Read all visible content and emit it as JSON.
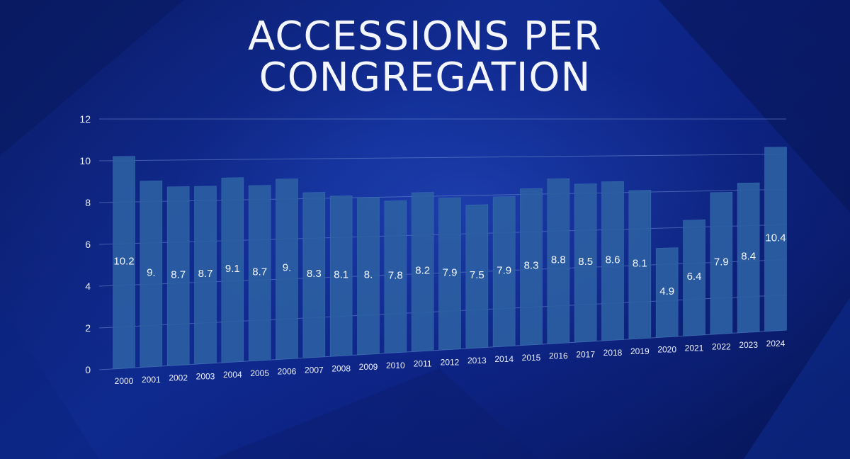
{
  "header": {
    "title_line1": "ACCESSIONS PER",
    "title_line2": "CONGREGATION"
  },
  "colors": {
    "background": "#0c1f72",
    "bar": "#2c5fa3",
    "text": "#f4f6ff",
    "grid": "#6f8fd0"
  },
  "chart_data": {
    "type": "bar",
    "title": "ACCESSIONS PER CONGREGATION",
    "xlabel": "",
    "ylabel": "",
    "ylim": [
      0,
      12
    ],
    "yticks": [
      0,
      2,
      4,
      6,
      8,
      10,
      12
    ],
    "grid": true,
    "categories": [
      "2000",
      "2001",
      "2002",
      "2003",
      "2004",
      "2005",
      "2006",
      "2007",
      "2008",
      "2009",
      "2010",
      "2011",
      "2012",
      "2013",
      "2014",
      "2015",
      "2016",
      "2017",
      "2018",
      "2019",
      "2020",
      "2021",
      "2022",
      "2023",
      "2024"
    ],
    "values": [
      10.2,
      9.0,
      8.7,
      8.7,
      9.1,
      8.7,
      9.0,
      8.3,
      8.1,
      8.0,
      7.8,
      8.2,
      7.9,
      7.5,
      7.9,
      8.3,
      8.8,
      8.5,
      8.6,
      8.1,
      4.9,
      6.4,
      7.9,
      8.4,
      10.4
    ],
    "data_labels": [
      "10.2",
      "9.",
      "8.7",
      "8.7",
      "9.1",
      "8.7",
      "9.",
      "8.3",
      "8.1",
      "8.",
      "7.8",
      "8.2",
      "7.9",
      "7.5",
      "7.9",
      "8.3",
      "8.8",
      "8.5",
      "8.6",
      "8.1",
      "4.9",
      "6.4",
      "7.9",
      "8.4",
      "10.4"
    ]
  }
}
